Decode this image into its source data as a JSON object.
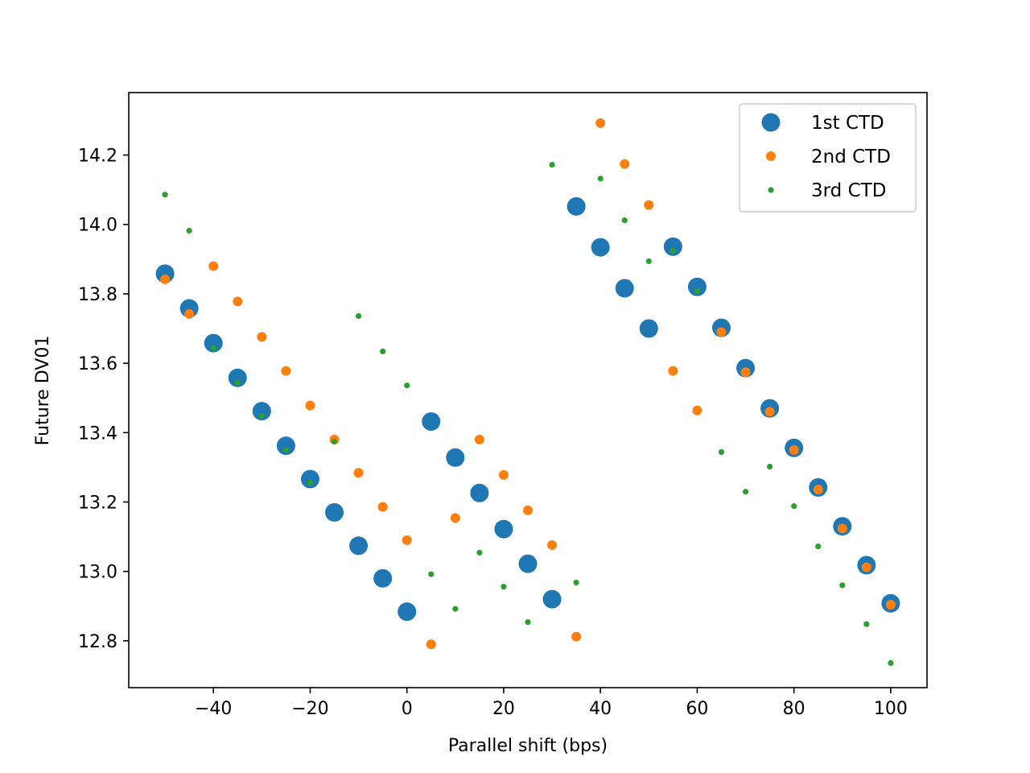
{
  "chart_data": {
    "type": "scatter",
    "title": "",
    "xlabel": "Parallel shift (bps)",
    "ylabel": "Future DV01",
    "xlim": [
      -57.5,
      107.5
    ],
    "ylim": [
      12.665,
      14.38
    ],
    "xticks": [
      -40,
      -20,
      0,
      20,
      40,
      60,
      80,
      100
    ],
    "yticks": [
      12.8,
      13.0,
      13.2,
      13.4,
      13.6,
      13.8,
      14.0,
      14.2
    ],
    "xtick_labels": [
      "−40",
      "−20",
      "0",
      "20",
      "40",
      "60",
      "80",
      "100"
    ],
    "ytick_labels": [
      "12.8",
      "13.0",
      "13.2",
      "13.4",
      "13.6",
      "13.8",
      "14.0",
      "14.2"
    ],
    "grid": false,
    "legend_position": "top-right",
    "x": [
      -50,
      -45,
      -40,
      -35,
      -30,
      -25,
      -20,
      -15,
      -10,
      -5,
      0,
      5,
      10,
      15,
      20,
      25,
      30,
      35,
      40,
      45,
      50,
      55,
      60,
      65,
      70,
      75,
      80,
      85,
      90,
      95,
      100
    ],
    "series": [
      {
        "name": "1st CTD",
        "color": "#1f77b4",
        "marker_size": "large",
        "values": [
          13.858,
          13.758,
          13.658,
          13.558,
          13.462,
          13.362,
          13.266,
          13.17,
          13.074,
          12.98,
          12.884,
          13.432,
          13.328,
          13.226,
          13.122,
          13.022,
          12.92,
          14.052,
          13.934,
          13.816,
          13.7,
          13.936,
          13.82,
          13.702,
          13.586,
          13.47,
          13.356,
          13.242,
          13.13,
          13.018,
          12.908
        ]
      },
      {
        "name": "2nd CTD",
        "color": "#ff7f0e",
        "marker_size": "medium",
        "values": [
          13.842,
          13.742,
          13.88,
          13.778,
          13.676,
          13.578,
          13.478,
          13.38,
          13.284,
          13.186,
          13.09,
          12.79,
          13.154,
          13.38,
          13.278,
          13.176,
          13.076,
          12.812,
          14.292,
          14.174,
          14.056,
          13.578,
          13.464,
          13.69,
          13.574,
          13.46,
          13.35,
          13.236,
          13.124,
          13.012,
          12.904
        ]
      },
      {
        "name": "3rd CTD",
        "color": "#2ca02c",
        "marker_size": "small",
        "values": [
          14.086,
          13.982,
          13.644,
          13.544,
          13.448,
          13.35,
          13.256,
          13.374,
          13.736,
          13.634,
          13.536,
          12.992,
          12.892,
          13.054,
          12.956,
          12.854,
          14.172,
          12.968,
          14.132,
          14.012,
          13.894,
          13.924,
          13.808,
          13.344,
          13.23,
          13.302,
          13.188,
          13.072,
          12.96,
          12.848,
          12.736
        ]
      }
    ]
  }
}
